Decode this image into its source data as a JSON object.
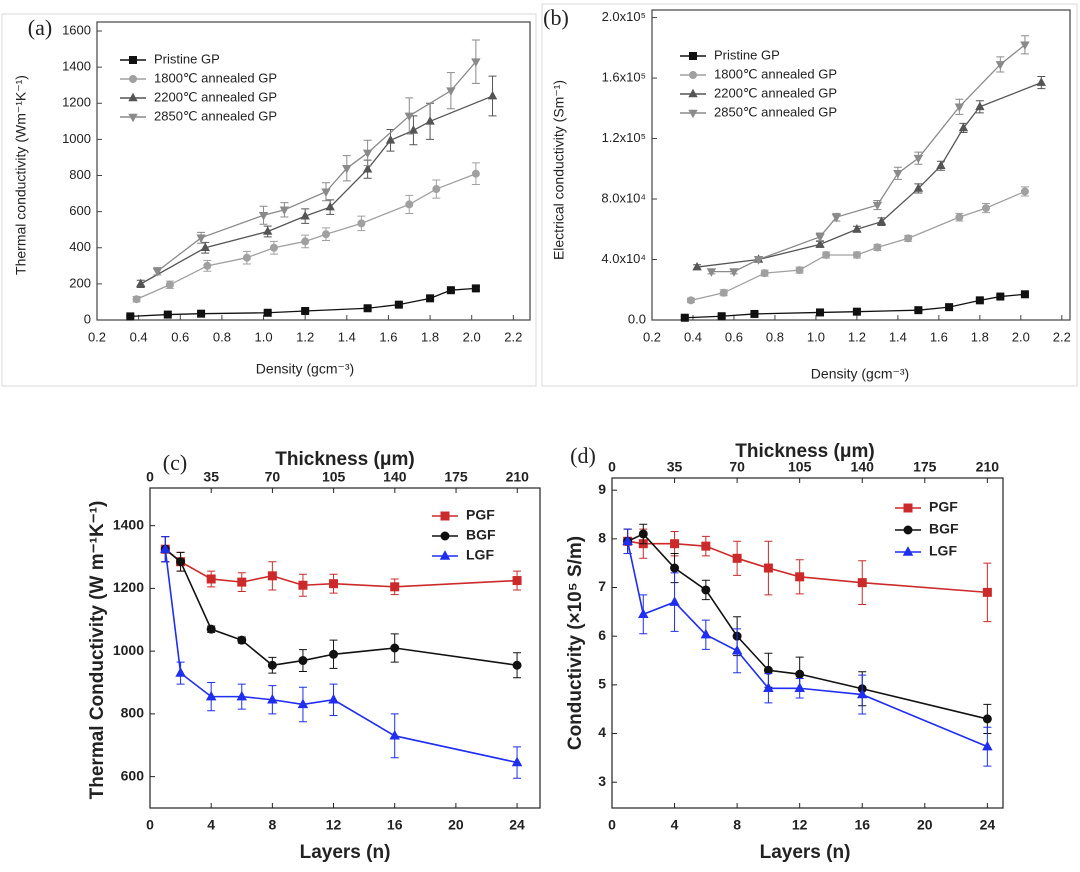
{
  "chart_data": [
    {
      "type": "line",
      "label": "(a)",
      "xlabel": "Density (gcm⁻³)",
      "ylabel": "Thermal conductivity (Wm⁻¹K⁻¹)",
      "xlim": [
        0.2,
        2.28
      ],
      "ylim": [
        0,
        1650
      ],
      "xticks": [
        0.2,
        0.4,
        0.6,
        0.8,
        {
          "value": 1,
          "label": "1.0"
        },
        1.2,
        1.4,
        1.6,
        1.8,
        {
          "value": 2,
          "label": "2.0"
        },
        2.2
      ],
      "yticks": [
        0,
        200,
        400,
        600,
        800,
        1000,
        1200,
        1400,
        1600
      ],
      "legend": "upper left",
      "series": [
        {
          "name": "Pristine GP",
          "color": "#111111",
          "marker": "square",
          "x": [
            0.36,
            0.54,
            0.7,
            1.02,
            1.2,
            1.5,
            1.65,
            1.8,
            1.9,
            2.02
          ],
          "values": [
            20,
            30,
            35,
            40,
            50,
            65,
            85,
            120,
            165,
            175
          ],
          "errors": [
            5,
            5,
            5,
            5,
            5,
            8,
            10,
            10,
            10,
            12
          ]
        },
        {
          "name": "1800℃ annealed GP",
          "color": "#a0a0a0",
          "marker": "circle",
          "x": [
            0.39,
            0.55,
            0.73,
            0.92,
            1.05,
            1.2,
            1.3,
            1.47,
            1.7,
            1.83,
            2.02
          ],
          "values": [
            115,
            195,
            300,
            345,
            400,
            435,
            475,
            535,
            640,
            725,
            810
          ],
          "errors": [
            15,
            20,
            30,
            35,
            35,
            35,
            35,
            40,
            50,
            50,
            60
          ]
        },
        {
          "name": "2200℃ annealed GP",
          "color": "#555555",
          "marker": "triangle-up",
          "x": [
            0.41,
            0.72,
            1.02,
            1.2,
            1.32,
            1.5,
            1.61,
            1.72,
            1.8,
            2.1
          ],
          "values": [
            200,
            400,
            490,
            575,
            625,
            835,
            995,
            1050,
            1100,
            1240
          ],
          "errors": [
            20,
            30,
            30,
            40,
            40,
            50,
            60,
            80,
            100,
            110
          ]
        },
        {
          "name": "2850℃ annealed GP",
          "color": "#8a8a8a",
          "marker": "triangle-down",
          "x": [
            0.49,
            0.7,
            1.0,
            1.1,
            1.3,
            1.4,
            1.5,
            1.7,
            1.9,
            2.02
          ],
          "values": [
            270,
            455,
            580,
            610,
            710,
            840,
            925,
            1130,
            1270,
            1430
          ],
          "errors": [
            20,
            30,
            50,
            40,
            50,
            70,
            70,
            100,
            100,
            120
          ]
        }
      ]
    },
    {
      "type": "line",
      "label": "(b)",
      "xlabel": "Density (gcm⁻³)",
      "ylabel": "Electrical conductivity (Sm⁻¹)",
      "xlim": [
        0.2,
        2.24
      ],
      "ylim": [
        0,
        205000
      ],
      "xticks": [
        0.2,
        0.4,
        0.6,
        0.8,
        {
          "value": 1,
          "label": "1.0"
        },
        1.2,
        1.4,
        1.6,
        1.8,
        {
          "value": 2,
          "label": "2.0"
        },
        2.2
      ],
      "yticks": [
        {
          "value": 0,
          "label": "0.0"
        },
        {
          "value": 40000,
          "label": "4.0x10⁴"
        },
        {
          "value": 80000,
          "label": "8.0x10⁴"
        },
        {
          "value": 120000,
          "label": "1.2x10⁵"
        },
        {
          "value": 160000,
          "label": "1.6x10⁵"
        },
        {
          "value": 200000,
          "label": "2.0x10⁵"
        }
      ],
      "legend": "upper left",
      "series": [
        {
          "name": "Pristine GP",
          "color": "#111111",
          "marker": "square",
          "x": [
            0.36,
            0.54,
            0.7,
            1.02,
            1.2,
            1.5,
            1.65,
            1.8,
            1.9,
            2.02
          ],
          "values": [
            1500,
            2500,
            4000,
            5000,
            5500,
            6500,
            8500,
            13000,
            15500,
            17000
          ],
          "errors": [
            1000,
            1000,
            1000,
            1000,
            1000,
            1000,
            1000,
            1000,
            1000,
            1000
          ]
        },
        {
          "name": "1800℃ annealed GP",
          "color": "#a0a0a0",
          "marker": "circle",
          "x": [
            0.39,
            0.55,
            0.75,
            0.92,
            1.05,
            1.2,
            1.3,
            1.45,
            1.7,
            1.83,
            2.02
          ],
          "values": [
            13000,
            18000,
            31000,
            33000,
            43000,
            43000,
            48000,
            54000,
            68000,
            74000,
            85000
          ],
          "errors": [
            1500,
            2000,
            2000,
            2000,
            2000,
            2000,
            2000,
            2000,
            2500,
            3000,
            3000
          ]
        },
        {
          "name": "2200℃ annealed GP",
          "color": "#555555",
          "marker": "triangle-up",
          "x": [
            0.42,
            0.72,
            1.02,
            1.2,
            1.32,
            1.5,
            1.61,
            1.72,
            1.8,
            2.1
          ],
          "values": [
            35000,
            40000,
            50000,
            60000,
            65000,
            87000,
            102000,
            127000,
            141000,
            157000
          ],
          "errors": [
            1500,
            2000,
            2000,
            2000,
            2500,
            3000,
            3000,
            3000,
            4000,
            4000
          ]
        },
        {
          "name": "2850℃ annealed GP",
          "color": "#8a8a8a",
          "marker": "triangle-down",
          "x": [
            0.49,
            0.6,
            0.72,
            1.02,
            1.1,
            1.3,
            1.4,
            1.5,
            1.7,
            1.9,
            2.02
          ],
          "values": [
            32000,
            32000,
            40000,
            55000,
            68000,
            76000,
            97000,
            107000,
            141000,
            169000,
            182000
          ],
          "errors": [
            1500,
            1500,
            2000,
            2500,
            2500,
            3000,
            4000,
            4000,
            5000,
            5000,
            6000
          ]
        }
      ]
    },
    {
      "type": "line",
      "label": "(c)",
      "xlabel": "Layers (n)",
      "ylabel": "Thermal Conductivity (W m⁻¹K⁻¹)",
      "x2label": "Thickness (μm)",
      "xlim": [
        0,
        25.5
      ],
      "ylim": [
        500,
        1520
      ],
      "x2lim": [
        0,
        223
      ],
      "xticks": [
        0,
        4,
        8,
        12,
        16,
        20,
        24
      ],
      "x2ticks": [
        0,
        35,
        70,
        105,
        140,
        175,
        210
      ],
      "yticks": [
        600,
        800,
        1000,
        1200,
        1400
      ],
      "legend": "upper right",
      "x": [
        1,
        2,
        4,
        6,
        8,
        10,
        12,
        16,
        24
      ],
      "series": [
        {
          "name": "PGF",
          "color": "#cc2a2a",
          "marker": "square",
          "values": [
            1325,
            1285,
            1230,
            1220,
            1240,
            1210,
            1215,
            1205,
            1225
          ],
          "errors": [
            40,
            30,
            25,
            30,
            45,
            35,
            30,
            25,
            30
          ]
        },
        {
          "name": "BGF",
          "color": "#111111",
          "marker": "circle",
          "values": [
            1325,
            1285,
            1070,
            1035,
            955,
            970,
            990,
            1010,
            955
          ],
          "errors": [
            40,
            30,
            10,
            10,
            25,
            35,
            45,
            45,
            40
          ]
        },
        {
          "name": "LGF",
          "color": "#1f2ef0",
          "marker": "triangle-up",
          "values": [
            1325,
            930,
            855,
            855,
            845,
            830,
            845,
            730,
            645
          ],
          "errors": [
            40,
            35,
            45,
            40,
            45,
            55,
            50,
            70,
            50
          ]
        }
      ]
    },
    {
      "type": "line",
      "label": "(d)",
      "xlabel": "Layers (n)",
      "ylabel": "Conductivity (×10⁵ S/m)",
      "x2label": "Thickness (μm)",
      "xlim": [
        0,
        25
      ],
      "ylim": [
        2.47,
        9.25
      ],
      "x2lim": [
        0,
        218.75
      ],
      "xticks": [
        0,
        4,
        8,
        12,
        16,
        20,
        24
      ],
      "x2ticks": [
        0,
        35,
        70,
        105,
        140,
        175,
        210
      ],
      "yticks": [
        3,
        4,
        5,
        6,
        7,
        8,
        9
      ],
      "legend": "upper right",
      "x": [
        1,
        2,
        4,
        6,
        8,
        10,
        12,
        16,
        24
      ],
      "series": [
        {
          "name": "PGF",
          "color": "#cc2a2a",
          "marker": "square",
          "values": [
            7.95,
            7.9,
            7.9,
            7.85,
            7.6,
            7.4,
            7.22,
            7.1,
            6.9
          ],
          "errors": [
            0.25,
            0.3,
            0.25,
            0.2,
            0.35,
            0.55,
            0.35,
            0.45,
            0.6
          ]
        },
        {
          "name": "BGF",
          "color": "#111111",
          "marker": "circle",
          "values": [
            7.95,
            8.1,
            7.4,
            6.95,
            6.0,
            5.3,
            5.22,
            4.92,
            4.3
          ],
          "errors": [
            0.25,
            0.2,
            0.3,
            0.2,
            0.4,
            0.35,
            0.35,
            0.35,
            0.3
          ]
        },
        {
          "name": "LGF",
          "color": "#1f2ef0",
          "marker": "triangle-up",
          "values": [
            7.95,
            6.45,
            6.7,
            6.03,
            5.7,
            4.93,
            4.93,
            4.8,
            3.73
          ],
          "errors": [
            0.25,
            0.4,
            0.6,
            0.3,
            0.45,
            0.3,
            0.2,
            0.4,
            0.4
          ]
        }
      ]
    }
  ]
}
